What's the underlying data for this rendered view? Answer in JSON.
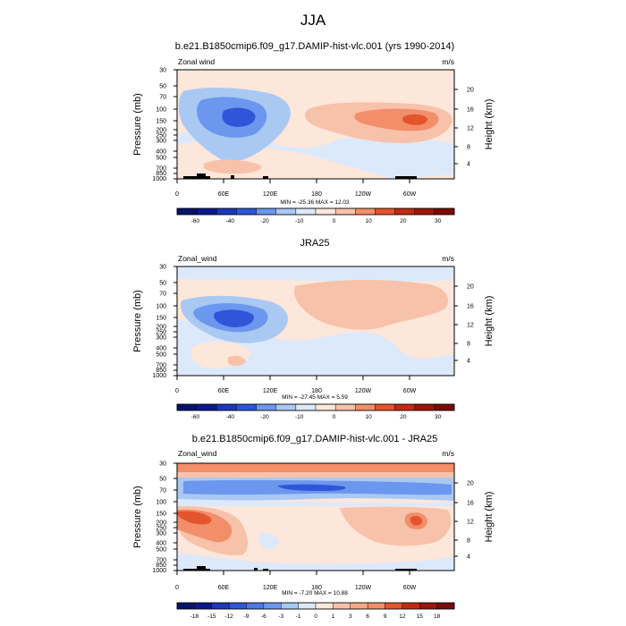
{
  "figure": {
    "main_title": "JJA"
  },
  "colors": {
    "deep_negative": "#0a1a8c",
    "strong_negative": "#2f56d8",
    "mid_negative": "#6c97ee",
    "light_negative": "#a9c9f3",
    "near_zero_negative": "#dce9fb",
    "near_zero_positive": "#fde6da",
    "light_positive": "#f7c2a9",
    "mid_positive": "#f28e69",
    "strong_positive": "#e4542d",
    "deep_positive": "#7a0b06",
    "topography": "#000000"
  },
  "chart_data": [
    {
      "type": "heatmap",
      "title": "b.e21.B1850cmip6.f09_g17.DAMIP-hist-vlc.001 (yrs 1990-2014)",
      "left_label": "Zonal wind",
      "right_label": "m/s",
      "ylabel": "Pressure (mb)",
      "ylabel_right": "Height (km)",
      "x_ticks": [
        "0",
        "60E",
        "120E",
        "180",
        "120W",
        "60W"
      ],
      "y_ticks": [
        "30",
        "50",
        "70",
        "100",
        "150",
        "200",
        "250",
        "300",
        "400",
        "500",
        "700",
        "850",
        "1000"
      ],
      "height_ticks": [
        "20",
        "16",
        "12",
        "8",
        "4"
      ],
      "min_max": "MIN = -25.36  MAX = 12.03",
      "colorbar_labels": [
        "-60",
        "-40",
        "-20",
        "-10",
        "0",
        "10",
        "20",
        "30"
      ],
      "colorbar_levels": 14,
      "features": [
        {
          "value": -20,
          "lon_range": [
            50,
            100
          ],
          "pressure_range": [
            120,
            200
          ]
        },
        {
          "value": 10,
          "lon_range": [
            240,
            300
          ],
          "pressure_range": [
            130,
            180
          ]
        },
        {
          "value": 5,
          "lon_range": [
            160,
            330
          ],
          "pressure_range": [
            90,
            250
          ]
        },
        {
          "value": -5,
          "lon_range": [
            60,
            160
          ],
          "pressure_range": [
            250,
            800
          ]
        },
        {
          "value": 5,
          "lon_range": [
            20,
            100
          ],
          "pressure_range": [
            700,
            900
          ]
        }
      ]
    },
    {
      "type": "heatmap",
      "title": "JRA25",
      "left_label": "Zonal_wind",
      "right_label": "m/s",
      "ylabel": "Pressure (mb)",
      "ylabel_right": "Height (km)",
      "x_ticks": [
        "0",
        "60E",
        "120E",
        "180",
        "120W",
        "60W"
      ],
      "y_ticks": [
        "30",
        "50",
        "70",
        "100",
        "150",
        "200",
        "250",
        "300",
        "400",
        "500",
        "700",
        "850",
        "1000"
      ],
      "height_ticks": [
        "20",
        "16",
        "12",
        "8",
        "4"
      ],
      "min_max": "MIN = -27.45  MAX =   5.59",
      "colorbar_labels": [
        "-60",
        "-40",
        "-20",
        "-10",
        "0",
        "10",
        "20",
        "30"
      ],
      "colorbar_levels": 14,
      "features": [
        {
          "value": -20,
          "lon_range": [
            40,
            100
          ],
          "pressure_range": [
            110,
            200
          ]
        },
        {
          "value": -5,
          "lon_range": [
            0,
            360
          ],
          "pressure_range": [
            30,
            45
          ]
        },
        {
          "value": 5,
          "lon_range": [
            120,
            330
          ],
          "pressure_range": [
            50,
            300
          ]
        },
        {
          "value": -5,
          "lon_range": [
            140,
            360
          ],
          "pressure_range": [
            400,
            1000
          ]
        }
      ]
    },
    {
      "type": "heatmap",
      "title": "b.e21.B1850cmip6.f09_g17.DAMIP-hist-vlc.001 - JRA25",
      "left_label": "Zonal_wind",
      "right_label": "m/s",
      "ylabel": "Pressure (mb)",
      "ylabel_right": "Height (km)",
      "x_ticks": [
        "0",
        "60E",
        "120E",
        "180",
        "120W",
        "60W"
      ],
      "y_ticks": [
        "30",
        "50",
        "70",
        "100",
        "150",
        "200",
        "250",
        "300",
        "400",
        "500",
        "700",
        "850",
        "1000"
      ],
      "height_ticks": [
        "20",
        "16",
        "12",
        "8",
        "4"
      ],
      "min_max": "MIN =  -7.20  MAX =  10.88",
      "colorbar_labels": [
        "-18",
        "-15",
        "-12",
        "-9",
        "-6",
        "-3",
        "-1",
        "0",
        "1",
        "3",
        "6",
        "9",
        "12",
        "15",
        "18"
      ],
      "colorbar_levels": 16,
      "features": [
        {
          "value": -6,
          "lon_range": [
            0,
            360
          ],
          "pressure_range": [
            45,
            85
          ]
        },
        {
          "value": -6,
          "lon_range": [
            130,
            240
          ],
          "pressure_range": [
            50,
            65
          ]
        },
        {
          "value": 6,
          "lon_range": [
            0,
            360
          ],
          "pressure_range": [
            30,
            40
          ]
        },
        {
          "value": 9,
          "lon_range": [
            0,
            60
          ],
          "pressure_range": [
            150,
            200
          ]
        },
        {
          "value": 3,
          "lon_range": [
            0,
            100
          ],
          "pressure_range": [
            150,
            700
          ]
        },
        {
          "value": 3,
          "lon_range": [
            180,
            360
          ],
          "pressure_range": [
            150,
            400
          ]
        },
        {
          "value": 6,
          "lon_range": [
            290,
            310
          ],
          "pressure_range": [
            180,
            230
          ]
        }
      ]
    }
  ]
}
